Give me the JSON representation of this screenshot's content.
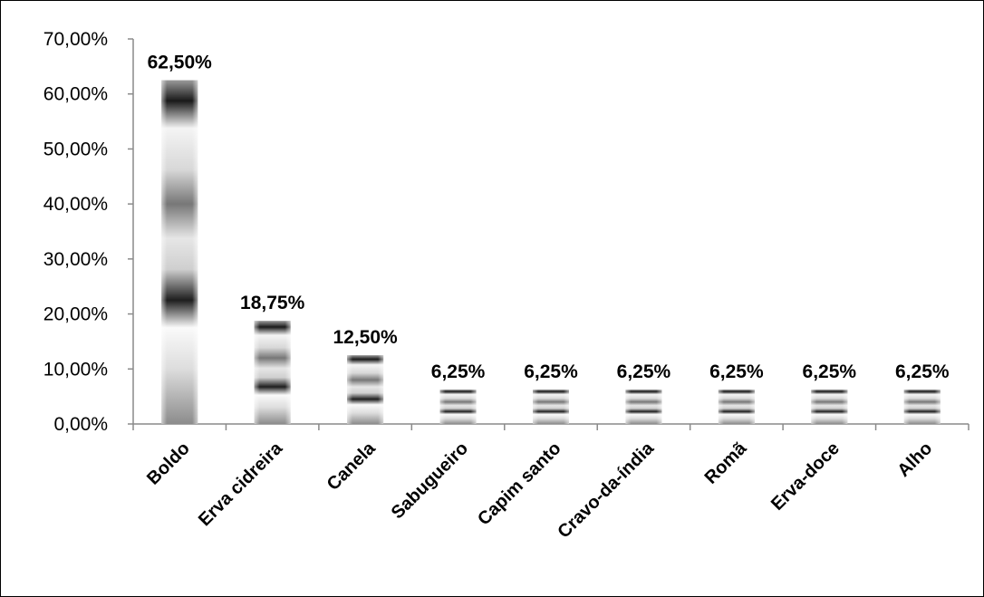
{
  "chart_data": {
    "type": "bar",
    "categories": [
      "Boldo",
      "Erva cidreira",
      "Canela",
      "Sabugueiro",
      "Capim santo",
      "Cravo-da-índia",
      "Romã",
      "Erva-doce",
      "Alho"
    ],
    "values": [
      62.5,
      18.75,
      12.5,
      6.25,
      6.25,
      6.25,
      6.25,
      6.25,
      6.25
    ],
    "data_labels": [
      "62,50%",
      "18,75%",
      "12,50%",
      "6,25%",
      "6,25%",
      "6,25%",
      "6,25%",
      "6,25%",
      "6,25%"
    ],
    "y_ticks": [
      0,
      10,
      20,
      30,
      40,
      50,
      60,
      70
    ],
    "y_tick_labels": [
      "0,00%",
      "10,00%",
      "20,00%",
      "30,00%",
      "40,00%",
      "50,00%",
      "60,00%",
      "70,00%"
    ],
    "ylim": [
      0,
      70
    ],
    "title": "",
    "xlabel": "",
    "ylabel": "",
    "grid": false,
    "legend": "none",
    "bar_style": "grayscale horizontal stripe gradient"
  }
}
